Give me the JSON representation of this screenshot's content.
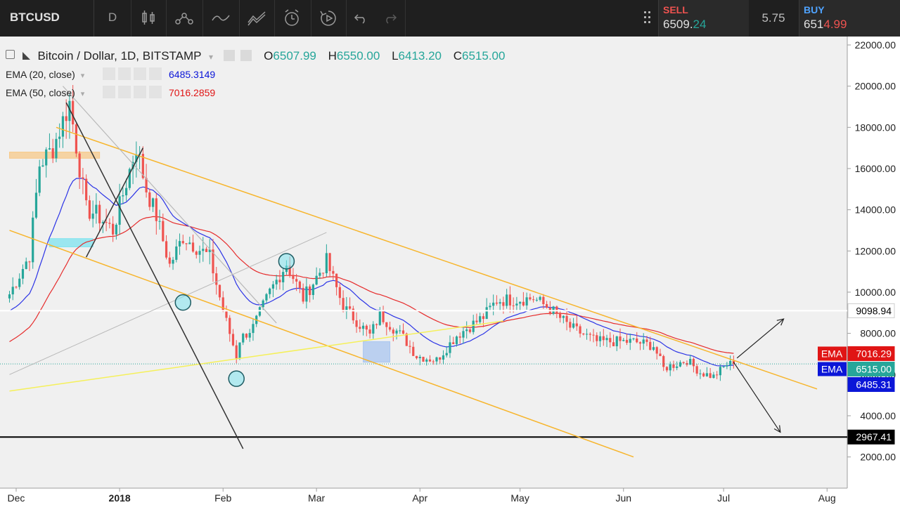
{
  "toolbar": {
    "symbol": "BTCUSD",
    "interval": "D"
  },
  "trade": {
    "sell_label": "SELL",
    "sell_price_main": "6509.",
    "sell_price_frac": "24",
    "spread": "5.75",
    "buy_label": "BUY",
    "buy_price_main": "651",
    "buy_price_frac": "4.99"
  },
  "legend": {
    "title": "Bitcoin / Dollar, 1D, BITSTAMP",
    "o_label": "O",
    "o_value": "6507.99",
    "h_label": "H",
    "h_value": "6550.00",
    "l_label": "L",
    "l_value": "6413.20",
    "c_label": "C",
    "c_value": "6515.00"
  },
  "indicators": [
    {
      "label": "EMA (20, close)",
      "value": "6485.3149",
      "color": "#0b16d8"
    },
    {
      "label": "EMA (50, close)",
      "value": "7016.2859",
      "color": "#e01515"
    }
  ],
  "colors": {
    "up": "#26a69a",
    "down": "#ef5350",
    "ema20": "#2b33e6",
    "ema50": "#e62b2b",
    "channel": "#f7b52c",
    "support": "#f5f05a",
    "level": "#000000"
  },
  "chart_data": {
    "type": "candlestick",
    "symbol": "BTCUSD",
    "ylim": [
      0,
      22500
    ],
    "y_ticks": [
      2000,
      4000,
      6000,
      8000,
      10000,
      12000,
      14000,
      16000,
      18000,
      20000,
      22000
    ],
    "y_tick_labels": [
      "2000.00",
      "4000.00",
      "6000.00",
      "8000.00",
      "10000.00",
      "12000.00",
      "14000.00",
      "16000.00",
      "18000.00",
      "20000.00",
      "22000.00"
    ],
    "x_ticks": [
      {
        "label": "Dec",
        "date": "2017-12-01"
      },
      {
        "label": "2018",
        "date": "2018-01-01",
        "bold": true
      },
      {
        "label": "Feb",
        "date": "2018-02-01"
      },
      {
        "label": "Mar",
        "date": "2018-03-01"
      },
      {
        "label": "Apr",
        "date": "2018-04-01"
      },
      {
        "label": "May",
        "date": "2018-05-01"
      },
      {
        "label": "Jun",
        "date": "2018-06-01"
      },
      {
        "label": "Jul",
        "date": "2018-07-01"
      },
      {
        "label": "Aug",
        "date": "2018-08-01"
      }
    ],
    "price_anchors": [
      {
        "date": "2017-11-29",
        "close": 9900
      },
      {
        "date": "2017-12-05",
        "close": 11800
      },
      {
        "date": "2017-12-08",
        "close": 16200
      },
      {
        "date": "2017-12-12",
        "close": 17000
      },
      {
        "date": "2017-12-17",
        "close": 19200
      },
      {
        "date": "2017-12-22",
        "close": 14000
      },
      {
        "date": "2017-12-25",
        "close": 13800
      },
      {
        "date": "2017-12-30",
        "close": 13000
      },
      {
        "date": "2018-01-06",
        "close": 17100
      },
      {
        "date": "2018-01-09",
        "close": 15000
      },
      {
        "date": "2018-01-12",
        "close": 13700
      },
      {
        "date": "2018-01-16",
        "close": 11300
      },
      {
        "date": "2018-01-20",
        "close": 12700
      },
      {
        "date": "2018-01-28",
        "close": 11700
      },
      {
        "date": "2018-02-01",
        "close": 9100
      },
      {
        "date": "2018-02-05",
        "close": 6900
      },
      {
        "date": "2018-02-06",
        "close": 7700
      },
      {
        "date": "2018-02-10",
        "close": 8300
      },
      {
        "date": "2018-02-15",
        "close": 10000
      },
      {
        "date": "2018-02-20",
        "close": 11400
      },
      {
        "date": "2018-02-25",
        "close": 9700
      },
      {
        "date": "2018-03-04",
        "close": 11500
      },
      {
        "date": "2018-03-09",
        "close": 9300
      },
      {
        "date": "2018-03-17",
        "close": 7900
      },
      {
        "date": "2018-03-20",
        "close": 8900
      },
      {
        "date": "2018-03-27",
        "close": 7800
      },
      {
        "date": "2018-03-31",
        "close": 6900
      },
      {
        "date": "2018-04-06",
        "close": 6700
      },
      {
        "date": "2018-04-12",
        "close": 7900
      },
      {
        "date": "2018-04-20",
        "close": 8800
      },
      {
        "date": "2018-04-24",
        "close": 9600
      },
      {
        "date": "2018-05-05",
        "close": 9700
      },
      {
        "date": "2018-05-10",
        "close": 9200
      },
      {
        "date": "2018-05-16",
        "close": 8300
      },
      {
        "date": "2018-05-24",
        "close": 7600
      },
      {
        "date": "2018-06-04",
        "close": 7600
      },
      {
        "date": "2018-06-10",
        "close": 7400
      },
      {
        "date": "2018-06-13",
        "close": 6300
      },
      {
        "date": "2018-06-20",
        "close": 6700
      },
      {
        "date": "2018-06-24",
        "close": 6100
      },
      {
        "date": "2018-06-28",
        "close": 5900
      },
      {
        "date": "2018-07-02",
        "close": 6500
      },
      {
        "date": "2018-07-04",
        "close": 6515
      }
    ],
    "series": [
      {
        "name": "EMA (20, close)",
        "last": 6485.31
      },
      {
        "name": "EMA (50, close)",
        "last": 7016.29
      }
    ],
    "price_labels": [
      {
        "text": "7016.29",
        "value": 7016.29,
        "tag": "EMA",
        "color": "#e01515"
      },
      {
        "text": "6515.00",
        "value": 6515.0,
        "tag": "EMA",
        "color": "#26a69a"
      },
      {
        "text": "6485.31",
        "value": 6485.31,
        "color": "#0b16d8"
      },
      {
        "text": "9098.94",
        "value": 9098.94,
        "color": "#ffffff"
      },
      {
        "text": "2967.41",
        "value": 2967.41,
        "color": "#000000"
      }
    ],
    "horizontal_levels": [
      {
        "value": 9098.94,
        "color": "#ffffff"
      },
      {
        "value": 2967.41,
        "color": "#000000"
      }
    ],
    "drawings": {
      "upper_channel": [
        [
          "2017-12-13",
          18000
        ],
        [
          "2018-07-29",
          5300
        ]
      ],
      "lower_channel": [
        [
          "2017-11-29",
          13000
        ],
        [
          "2018-06-04",
          2000
        ]
      ],
      "support_line": [
        [
          "2017-11-29",
          5200
        ],
        [
          "2018-04-26",
          8600
        ]
      ],
      "thin_diagonal": [
        [
          "2017-11-29",
          6000
        ],
        [
          "2018-03-04",
          12900
        ]
      ],
      "gray_fan": [
        [
          "2017-12-15",
          20000
        ],
        [
          "2018-02-17",
          8500
        ]
      ],
      "black_down": [
        [
          "2017-12-16",
          19200
        ],
        [
          "2018-02-07",
          2400
        ]
      ],
      "black_up": [
        [
          "2017-12-22",
          11700
        ],
        [
          "2018-01-08",
          17000
        ]
      ],
      "arrow_up": [
        [
          "2018-07-05",
          6800
        ],
        [
          "2018-07-19",
          8700
        ]
      ],
      "arrow_down": [
        [
          "2018-07-04",
          6600
        ],
        [
          "2018-07-18",
          3200
        ]
      ],
      "zones": [
        {
          "from": [
            "2017-11-29",
            16800
          ],
          "to": [
            "2017-12-26",
            16500
          ],
          "color": "#f7c98a"
        },
        {
          "from": [
            "2017-12-11",
            12600
          ],
          "to": [
            "2017-12-24",
            12200
          ],
          "color": "#7fe3ef"
        },
        {
          "from": [
            "2018-03-15",
            7600
          ],
          "to": [
            "2018-03-23",
            6600
          ],
          "color": "#a9c6f0"
        }
      ],
      "circles": [
        {
          "at": [
            "2018-01-20",
            9500
          ]
        },
        {
          "at": [
            "2018-02-20",
            11500
          ]
        },
        {
          "at": [
            "2018-02-05",
            5800
          ]
        }
      ]
    }
  }
}
